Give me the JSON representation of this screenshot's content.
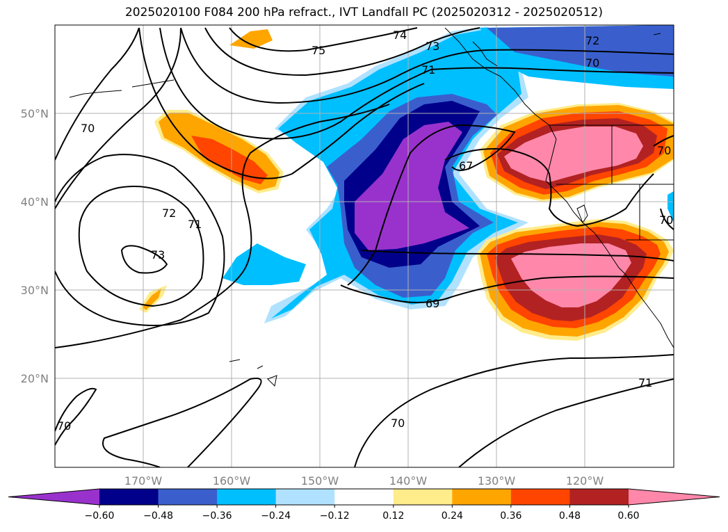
{
  "title": "2025020100 F084 200 hPa refract., IVT Landfall PC (2025020312 - 2025020512)",
  "lon_labels": [
    "170°W",
    "160°W",
    "150°W",
    "140°W",
    "130°W",
    "120°W"
  ],
  "lat_labels": [
    "50°N",
    "40°N",
    "30°N",
    "20°N"
  ],
  "colorbar": {
    "ticks": [
      "−0.60",
      "−0.48",
      "−0.36",
      "−0.24",
      "−0.12",
      "0.12",
      "0.24",
      "0.36",
      "0.48",
      "0.60"
    ],
    "colors": [
      "#9932cc",
      "#00008b",
      "#3a5fcd",
      "#00bfff",
      "#b0e2ff",
      "#ffffff",
      "#ffec8b",
      "#ffa500",
      "#ff4500",
      "#b22222",
      "#ff88aa"
    ]
  },
  "contour_labels": [
    "75",
    "74",
    "73",
    "72",
    "70",
    "71",
    "70",
    "72",
    "71",
    "73",
    "67",
    "69",
    "70",
    "70",
    "70",
    "71",
    "70"
  ],
  "map_data": {
    "extent_lon": [
      -180,
      -110
    ],
    "extent_lat": [
      10,
      60
    ],
    "field": "200 hPa refractivity contours with IVT landfall principal component shading",
    "shading_levels": [
      -0.6,
      -0.48,
      -0.36,
      -0.24,
      -0.12,
      0.12,
      0.24,
      0.36,
      0.48,
      0.6
    ]
  }
}
